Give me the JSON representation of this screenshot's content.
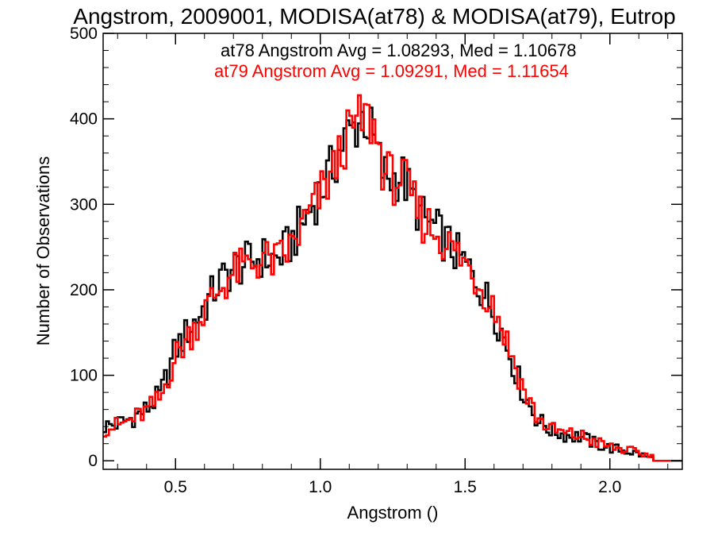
{
  "chart_data": {
    "type": "histogram-step",
    "title": "Angstrom, 2009001, MODISA(at78) & MODISA(at79), Eutrop",
    "xlabel": "Angstrom ()",
    "ylabel": "Number of Observations",
    "xlim": [
      0.25,
      2.25
    ],
    "ylim": [
      -10,
      500
    ],
    "x_ticks": [
      0.5,
      1.0,
      1.5,
      2.0
    ],
    "x_tick_labels": [
      "0.5",
      "1.0",
      "1.5",
      "2.0"
    ],
    "y_ticks": [
      0,
      100,
      200,
      300,
      400,
      500
    ],
    "y_tick_labels": [
      "0",
      "100",
      "200",
      "300",
      "400",
      "500"
    ],
    "grid": false,
    "bin_width": 0.01,
    "annotations": [
      {
        "text": "at78 Angstrom Avg = 1.08293, Med = 1.10678",
        "color": "#000000"
      },
      {
        "text": "at79 Angstrom Avg = 1.09291, Med = 1.11654",
        "color": "#ff0000"
      }
    ],
    "series": [
      {
        "color": "#000000",
        "points": [
          [
            0.25,
            40
          ],
          [
            0.3,
            43
          ],
          [
            0.35,
            50
          ],
          [
            0.4,
            60
          ],
          [
            0.45,
            78
          ],
          [
            0.47,
            100
          ],
          [
            0.5,
            130
          ],
          [
            0.55,
            155
          ],
          [
            0.6,
            180
          ],
          [
            0.65,
            208
          ],
          [
            0.7,
            225
          ],
          [
            0.75,
            232
          ],
          [
            0.8,
            238
          ],
          [
            0.85,
            235
          ],
          [
            0.9,
            255
          ],
          [
            0.95,
            285
          ],
          [
            1.0,
            315
          ],
          [
            1.05,
            348
          ],
          [
            1.08,
            375
          ],
          [
            1.12,
            390
          ],
          [
            1.15,
            405
          ],
          [
            1.18,
            380
          ],
          [
            1.2,
            355
          ],
          [
            1.22,
            335
          ],
          [
            1.25,
            330
          ],
          [
            1.28,
            335
          ],
          [
            1.3,
            320
          ],
          [
            1.35,
            285
          ],
          [
            1.4,
            270
          ],
          [
            1.45,
            250
          ],
          [
            1.5,
            230
          ],
          [
            1.55,
            205
          ],
          [
            1.6,
            175
          ],
          [
            1.65,
            130
          ],
          [
            1.7,
            80
          ],
          [
            1.75,
            48
          ],
          [
            1.8,
            35
          ],
          [
            1.85,
            30
          ],
          [
            1.9,
            28
          ],
          [
            1.95,
            20
          ],
          [
            2.0,
            15
          ],
          [
            2.05,
            12
          ],
          [
            2.1,
            8
          ],
          [
            2.15,
            2
          ],
          [
            2.16,
            0
          ],
          [
            2.25,
            0
          ]
        ]
      },
      {
        "color": "#ff0000",
        "points": [
          [
            0.25,
            38
          ],
          [
            0.3,
            41
          ],
          [
            0.35,
            48
          ],
          [
            0.4,
            58
          ],
          [
            0.45,
            73
          ],
          [
            0.47,
            95
          ],
          [
            0.5,
            122
          ],
          [
            0.55,
            148
          ],
          [
            0.6,
            175
          ],
          [
            0.65,
            200
          ],
          [
            0.7,
            220
          ],
          [
            0.75,
            228
          ],
          [
            0.8,
            236
          ],
          [
            0.85,
            232
          ],
          [
            0.9,
            250
          ],
          [
            0.95,
            280
          ],
          [
            1.0,
            310
          ],
          [
            1.05,
            342
          ],
          [
            1.08,
            370
          ],
          [
            1.12,
            392
          ],
          [
            1.15,
            400
          ],
          [
            1.18,
            395
          ],
          [
            1.2,
            370
          ],
          [
            1.22,
            340
          ],
          [
            1.25,
            328
          ],
          [
            1.28,
            332
          ],
          [
            1.3,
            318
          ],
          [
            1.35,
            283
          ],
          [
            1.4,
            268
          ],
          [
            1.45,
            250
          ],
          [
            1.5,
            232
          ],
          [
            1.55,
            207
          ],
          [
            1.6,
            182
          ],
          [
            1.65,
            135
          ],
          [
            1.7,
            85
          ],
          [
            1.75,
            50
          ],
          [
            1.8,
            36
          ],
          [
            1.85,
            31
          ],
          [
            1.9,
            29
          ],
          [
            1.95,
            22
          ],
          [
            2.0,
            16
          ],
          [
            2.05,
            13
          ],
          [
            2.1,
            9
          ],
          [
            2.15,
            5
          ],
          [
            2.16,
            0
          ],
          [
            2.25,
            0
          ]
        ]
      }
    ]
  }
}
